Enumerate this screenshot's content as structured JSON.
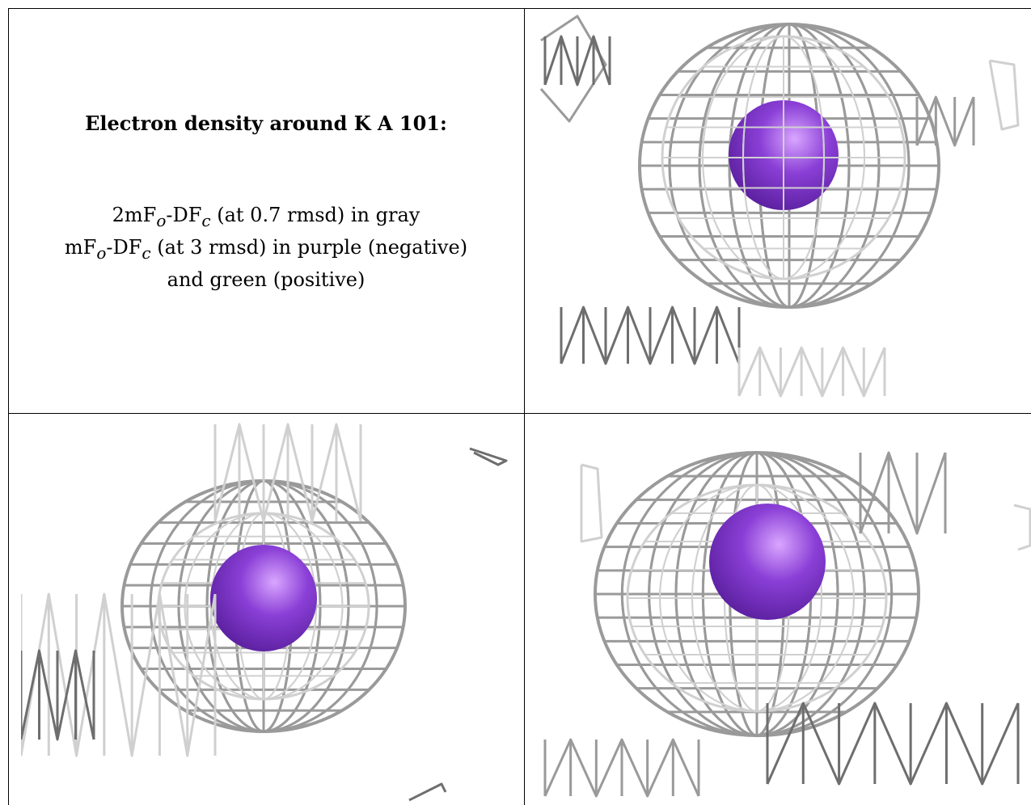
{
  "caption": {
    "title": "Electron density around K A 101:",
    "line1": {
      "pre": "2mF",
      "sub1": "o",
      "mid": "-DF",
      "sub2": "c",
      "post": " (at 0.7 rmsd) in gray"
    },
    "line2": {
      "pre": "mF",
      "sub1": "o",
      "mid": "-DF",
      "sub2": "c",
      "post": " (at 3 rmsd) in purple (negative)"
    },
    "line3": "and green (positive)"
  },
  "colors": {
    "mesh": "#9a9a9a",
    "mesh_dark": "#6e6e6e",
    "mesh_faint": "#d0d0d0",
    "ion": "#8a3fd6",
    "ion_highlight": "#d9a6ff",
    "border": "#000000"
  },
  "panels": [
    {
      "name": "top-right-view",
      "icon": "mesh-sphere-icon"
    },
    {
      "name": "bottom-left-view",
      "icon": "mesh-sphere-icon"
    },
    {
      "name": "bottom-right-view",
      "icon": "mesh-sphere-icon"
    }
  ]
}
